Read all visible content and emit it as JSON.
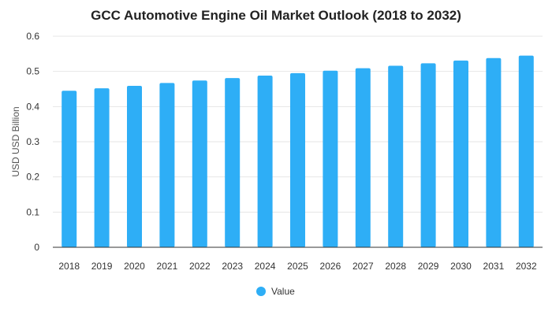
{
  "chart_data": {
    "type": "bar",
    "title": "GCC Automotive Engine Oil Market Outlook (2018 to 2032)",
    "xlabel": "",
    "ylabel": "USD USD Billion",
    "categories": [
      "2018",
      "2019",
      "2020",
      "2021",
      "2022",
      "2023",
      "2024",
      "2025",
      "2026",
      "2027",
      "2028",
      "2029",
      "2030",
      "2031",
      "2032"
    ],
    "series": [
      {
        "name": "Value",
        "color": "#2eaef6",
        "values": [
          0.445,
          0.452,
          0.459,
          0.467,
          0.474,
          0.481,
          0.488,
          0.495,
          0.502,
          0.509,
          0.516,
          0.523,
          0.531,
          0.538,
          0.545
        ]
      }
    ],
    "ylim": [
      0,
      0.6
    ],
    "yticks": [
      "0",
      "0.1",
      "0.2",
      "0.3",
      "0.4",
      "0.5",
      "0.6"
    ],
    "grid": true,
    "legend_position": "bottom-center"
  }
}
